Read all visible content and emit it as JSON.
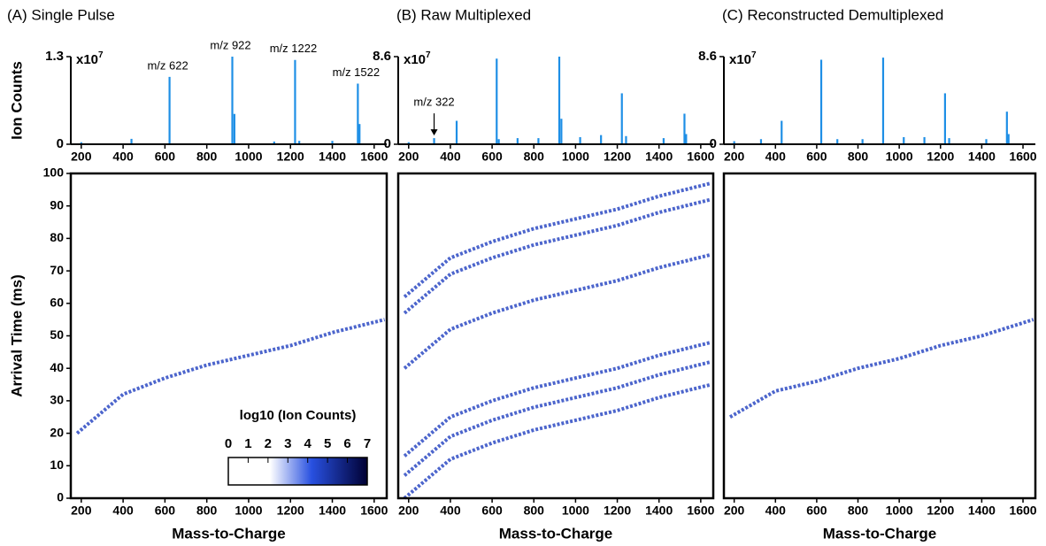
{
  "chart_data": [
    {
      "type": "bar",
      "title": "(A) Single Pulse",
      "ylabel": "Ion Counts",
      "multiplier_base": "x10",
      "multiplier_exp": 7,
      "color": "#1e8fe6",
      "x": [
        200,
        440,
        622,
        922,
        932,
        1122,
        1222,
        1242,
        1400,
        1522,
        1530
      ],
      "values": [
        0.03,
        0.08,
        1.0,
        1.3,
        0.45,
        0.04,
        1.25,
        0.05,
        0.05,
        0.9,
        0.3
      ],
      "xlim": [
        150,
        1660
      ],
      "xticks": [
        200,
        400,
        600,
        800,
        1000,
        1200,
        1400,
        1600
      ],
      "ylim": [
        0,
        1.3
      ],
      "yticks": [
        0,
        1.3
      ],
      "annotations": [
        {
          "text": "m/z 622",
          "x": 622
        },
        {
          "text": "m/z 922",
          "x": 922
        },
        {
          "text": "m/z 1222",
          "x": 1222
        },
        {
          "text": "m/z 1522",
          "x": 1522
        }
      ]
    },
    {
      "type": "heatmap",
      "xlabel": "Mass-to-Charge",
      "ylabel": "Arrival Time (ms)",
      "xlim": [
        150,
        1660
      ],
      "xticks": [
        200,
        400,
        600,
        800,
        1000,
        1200,
        1400,
        1600
      ],
      "ylim": [
        0,
        100
      ],
      "yticks": [
        0,
        10,
        20,
        30,
        40,
        50,
        60,
        70,
        80,
        90,
        100
      ],
      "series": [
        {
          "color": "#1f3fbf",
          "x": [
            180,
            400,
            600,
            800,
            1000,
            1200,
            1400,
            1650
          ],
          "values": [
            20,
            32,
            37,
            41,
            44,
            47,
            51,
            55
          ]
        }
      ],
      "colorbar": {
        "title": "log10 (Ion Counts)",
        "ticks": [
          0,
          1,
          2,
          3,
          4,
          5,
          6,
          7
        ]
      }
    },
    {
      "type": "bar",
      "title": "(B) Raw Multiplexed",
      "multiplier_base": "x10",
      "multiplier_exp": 7,
      "color": "#1e8fe6",
      "x": [
        200,
        322,
        430,
        622,
        632,
        722,
        822,
        922,
        932,
        1022,
        1122,
        1222,
        1242,
        1422,
        1522,
        1530
      ],
      "values": [
        0.2,
        0.6,
        2.3,
        8.4,
        0.5,
        0.6,
        0.6,
        8.6,
        2.5,
        0.7,
        0.9,
        5.0,
        0.8,
        0.6,
        3.0,
        1.0
      ],
      "xlim": [
        150,
        1660
      ],
      "xticks": [
        200,
        400,
        600,
        800,
        1000,
        1200,
        1400,
        1600
      ],
      "ylim": [
        0,
        8.6
      ],
      "yticks": [
        0,
        8.6
      ],
      "annotations": [
        {
          "text": "m/z 322",
          "x": 322
        }
      ]
    },
    {
      "type": "heatmap",
      "xlabel": "Mass-to-Charge",
      "xlim": [
        150,
        1660
      ],
      "xticks": [
        200,
        400,
        600,
        800,
        1000,
        1200,
        1400,
        1600
      ],
      "ylim": [
        0,
        100
      ],
      "series": [
        {
          "color": "#1f3fbf",
          "x": [
            180,
            400,
            600,
            800,
            1000,
            1200,
            1400,
            1650
          ],
          "values": [
            0,
            12,
            17,
            21,
            24,
            27,
            31,
            35
          ]
        },
        {
          "color": "#1f3fbf",
          "x": [
            180,
            400,
            600,
            800,
            1000,
            1200,
            1400,
            1650
          ],
          "values": [
            7,
            19,
            24,
            28,
            31,
            34,
            38,
            42
          ]
        },
        {
          "color": "#1f3fbf",
          "x": [
            180,
            400,
            600,
            800,
            1000,
            1200,
            1400,
            1650
          ],
          "values": [
            13,
            25,
            30,
            34,
            37,
            40,
            44,
            48
          ]
        },
        {
          "color": "#1f3fbf",
          "x": [
            180,
            400,
            600,
            800,
            1000,
            1200,
            1400,
            1650
          ],
          "values": [
            40,
            52,
            57,
            61,
            64,
            67,
            71,
            75
          ]
        },
        {
          "color": "#1f3fbf",
          "x": [
            180,
            400,
            600,
            800,
            1000,
            1200,
            1400,
            1650
          ],
          "values": [
            57,
            69,
            74,
            78,
            81,
            84,
            88,
            92
          ]
        },
        {
          "color": "#1f3fbf",
          "x": [
            180,
            400,
            600,
            800,
            1000,
            1200,
            1400,
            1650
          ],
          "values": [
            62,
            74,
            79,
            83,
            86,
            89,
            93,
            97
          ]
        }
      ]
    },
    {
      "type": "bar",
      "title": "(C) Reconstructed Demultiplexed",
      "multiplier_base": "x10",
      "multiplier_exp": 7,
      "color": "#1e8fe6",
      "x": [
        200,
        330,
        430,
        622,
        700,
        822,
        922,
        1022,
        1122,
        1222,
        1242,
        1422,
        1522,
        1530
      ],
      "values": [
        0.3,
        0.5,
        2.3,
        8.3,
        0.5,
        0.5,
        8.5,
        0.7,
        0.7,
        5.0,
        0.6,
        0.5,
        3.2,
        1.0
      ],
      "xlim": [
        150,
        1660
      ],
      "xticks": [
        200,
        400,
        600,
        800,
        1000,
        1200,
        1400,
        1600
      ],
      "ylim": [
        0,
        8.6
      ],
      "yticks": [
        0,
        8.6
      ]
    },
    {
      "type": "heatmap",
      "xlabel": "Mass-to-Charge",
      "xlim": [
        150,
        1660
      ],
      "xticks": [
        200,
        400,
        600,
        800,
        1000,
        1200,
        1400,
        1600
      ],
      "ylim": [
        0,
        100
      ],
      "series": [
        {
          "color": "#1f3fbf",
          "x": [
            180,
            400,
            600,
            800,
            1000,
            1200,
            1400,
            1650
          ],
          "values": [
            25,
            33,
            36,
            40,
            43,
            47,
            50,
            55
          ]
        }
      ]
    }
  ]
}
